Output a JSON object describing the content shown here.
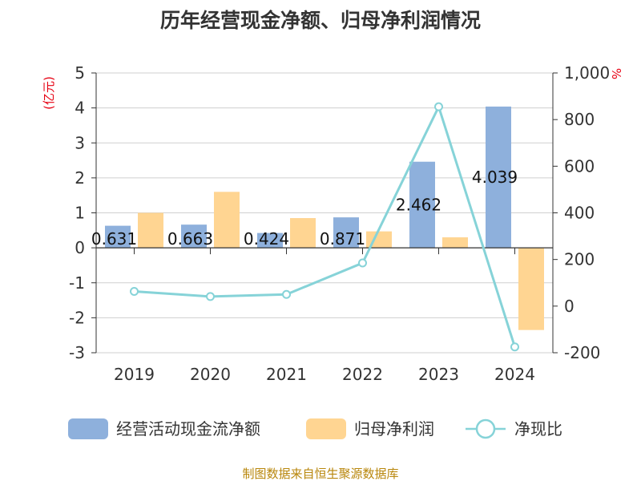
{
  "chart_data": {
    "type": "bar",
    "title": "历年经营现金净额、归母净利润情况",
    "categories": [
      "2019",
      "2020",
      "2021",
      "2022",
      "2023",
      "2024"
    ],
    "y_left": {
      "unit_label": "(亿元)",
      "ylim": [
        -3,
        5
      ],
      "ticks": [
        "5",
        "4",
        "3",
        "2",
        "1",
        "0",
        "-1",
        "-2",
        "-3"
      ]
    },
    "y_right": {
      "unit_label": "%",
      "ylim": [
        -200,
        1000
      ],
      "ticks": [
        "1,000",
        "800",
        "600",
        "400",
        "200",
        "0",
        "-200"
      ]
    },
    "grid": true,
    "legend_position": "bottom",
    "series": [
      {
        "name": "经营活动现金流净额",
        "type": "bar",
        "axis": "left",
        "color": "#8eb0dc",
        "values": [
          0.631,
          0.663,
          0.424,
          0.871,
          2.462,
          4.039
        ],
        "labels": [
          "0.631",
          "0.663",
          "0.424",
          "0.871",
          "2.462",
          "4.039"
        ]
      },
      {
        "name": "归母净利润",
        "type": "bar",
        "axis": "left",
        "color": "#ffd592",
        "values": [
          1.0,
          1.6,
          0.85,
          0.47,
          0.3,
          -2.35
        ]
      },
      {
        "name": "净现比",
        "type": "line",
        "axis": "right",
        "color": "#86d3d8",
        "values": [
          63,
          41,
          50,
          185,
          855,
          -175
        ]
      }
    ]
  },
  "source_text": "制图数据来自恒生聚源数据库"
}
